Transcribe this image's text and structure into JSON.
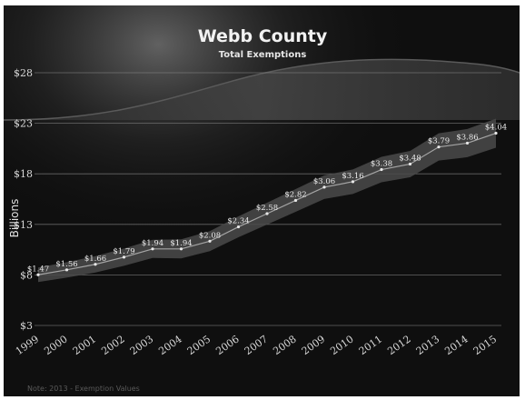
{
  "colors": {
    "background": "#0f0f0f",
    "band": "#4a4a4a",
    "line": "#e8e8e8",
    "gridline": "#8a8a8a",
    "swoosh": "#3a3a3a"
  },
  "footer_text": "Note: 2013 - Exemption Values",
  "chart_data": {
    "type": "area",
    "title": "Webb County",
    "subtitle": "Total Exemptions",
    "ylabel": "Billions",
    "xlabel": "",
    "ylim": [
      3,
      28
    ],
    "yticks": [
      3,
      8,
      13,
      18,
      23,
      28
    ],
    "ytick_labels": [
      "$3",
      "$8",
      "$13",
      "$18",
      "$23",
      "$28"
    ],
    "grid": true,
    "legend": "none",
    "categories": [
      "1999",
      "2000",
      "2001",
      "2002",
      "2003",
      "2004",
      "2005",
      "2006",
      "2007",
      "2008",
      "2009",
      "2010",
      "2011",
      "2012",
      "2013",
      "2014",
      "2015"
    ],
    "series": [
      {
        "values": [
          1.47,
          1.56,
          1.66,
          1.79,
          1.94,
          1.94,
          2.08,
          2.34,
          2.58,
          2.82,
          3.06,
          3.16,
          3.38,
          3.48,
          3.79,
          3.86,
          4.04
        ],
        "data_labels": [
          "$1.47",
          "$1.56",
          "$1.66",
          "$1.79",
          "$1.94",
          "$1.94",
          "$2.08",
          "$2.34",
          "$2.58",
          "$2.82",
          "$3.06",
          "$3.16",
          "$3.38",
          "$3.48",
          "$3.79",
          "$3.86",
          "$4.04"
        ]
      }
    ]
  }
}
